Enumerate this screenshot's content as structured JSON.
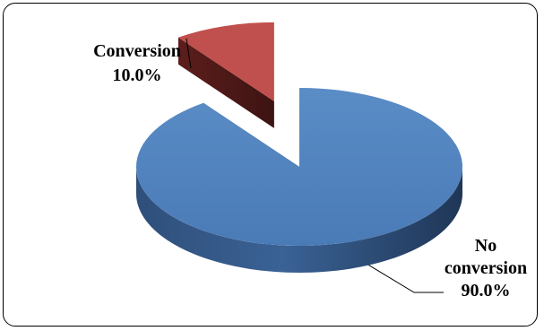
{
  "chart_data": {
    "type": "pie",
    "title": "",
    "categories": [
      "No conversion",
      "Conversion"
    ],
    "values": [
      90.0,
      10.0
    ],
    "labels": [
      {
        "lines": [
          "No",
          "conversion",
          "90.0%"
        ]
      },
      {
        "lines": [
          "Conversion",
          "10.0%"
        ]
      }
    ],
    "colors": [
      "#4f81bd",
      "#c0504d"
    ],
    "exploded": [
      "Conversion"
    ],
    "three_d": true,
    "legend": "none"
  }
}
